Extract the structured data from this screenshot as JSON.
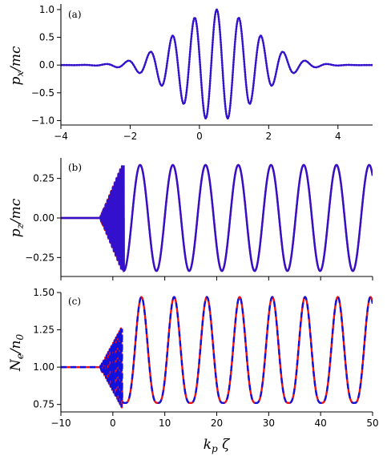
{
  "figure": {
    "xlabel_main": "k",
    "xlabel_sub": "p",
    "xlabel_tail": " ζ"
  },
  "chart_data": [
    {
      "type": "line",
      "panel_label": "(a)",
      "ylabel_main": "p",
      "ylabel_sub": "x",
      "ylabel_tail": "/mc",
      "xlim": [
        -4,
        5
      ],
      "ylim": [
        -1.08,
        1.1
      ],
      "xticks": [
        -4,
        -2,
        0,
        2,
        4
      ],
      "xtick_labels": [
        "−4",
        "−2",
        "0",
        "2",
        "4"
      ],
      "yticks": [
        -1.0,
        -0.5,
        0.0,
        0.5,
        1.0
      ],
      "ytick_labels": [
        "−1.0",
        "−0.5",
        "0.0",
        "0.5",
        "1.0"
      ],
      "model": {
        "kind": "gaussian-carrier",
        "amplitude": 1.0,
        "period": 0.64,
        "center": 0.5,
        "width": 1.6
      },
      "series": [
        {
          "name": "",
          "color": "#cc1111",
          "style": "solid"
        },
        {
          "name": "",
          "color": "#3311cc",
          "style": "dotted"
        }
      ]
    },
    {
      "type": "line",
      "panel_label": "(b)",
      "ylabel_main": "p",
      "ylabel_sub": "z",
      "ylabel_tail": "/mc",
      "xlim": [
        -10,
        50
      ],
      "ylim": [
        -0.37,
        0.38
      ],
      "xticks": [
        -10,
        0,
        10,
        20,
        30,
        40,
        50
      ],
      "yticks": [
        -0.25,
        0.0,
        0.25
      ],
      "ytick_labels": [
        "−0.25",
        "0.00",
        "0.25"
      ],
      "model": {
        "kind": "wake",
        "amplitude": 0.335,
        "period": 6.3,
        "phase_start": 2.1,
        "flat_until": -2.5
      },
      "series": [
        {
          "name": "",
          "color": "#cc1111",
          "style": "solid"
        },
        {
          "name": "",
          "color": "#3311cc",
          "style": "solid"
        }
      ]
    },
    {
      "type": "line",
      "panel_label": "(c)",
      "ylabel_main": "N",
      "ylabel_sub": "e",
      "ylabel_tail": "/n",
      "ylabel_sub2": "0",
      "xlim": [
        -10,
        50
      ],
      "ylim": [
        0.7,
        1.5
      ],
      "xticks": [
        -10,
        0,
        10,
        20,
        30,
        40,
        50
      ],
      "xtick_labels": [
        "−10",
        "0",
        "10",
        "20",
        "30",
        "40",
        "50"
      ],
      "yticks": [
        0.75,
        1.0,
        1.25,
        1.5
      ],
      "ytick_labels": [
        "0.75",
        "1.00",
        "1.25",
        "1.50"
      ],
      "model": {
        "kind": "density",
        "peak": 1.47,
        "trough": 0.76,
        "period": 6.3,
        "first_peak": 5.5,
        "flat_until": -2.5
      },
      "series": [
        {
          "name": "",
          "color": "#ee1111",
          "style": "solid"
        },
        {
          "name": "",
          "color": "#1111dd",
          "style": "dashed"
        }
      ]
    }
  ]
}
